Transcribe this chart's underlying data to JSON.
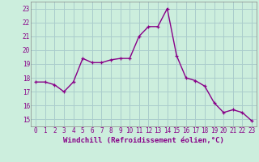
{
  "x": [
    0,
    1,
    2,
    3,
    4,
    5,
    6,
    7,
    8,
    9,
    10,
    11,
    12,
    13,
    14,
    15,
    16,
    17,
    18,
    19,
    20,
    21,
    22,
    23
  ],
  "y": [
    17.7,
    17.7,
    17.5,
    17.0,
    17.7,
    19.4,
    19.1,
    19.1,
    19.3,
    19.4,
    19.4,
    21.0,
    21.7,
    21.7,
    23.0,
    19.6,
    18.0,
    17.8,
    17.4,
    16.2,
    15.5,
    15.7,
    15.5,
    14.9
  ],
  "line_color": "#880088",
  "marker": "+",
  "marker_size": 3,
  "bg_color": "#cceedd",
  "grid_color": "#aacccc",
  "xlabel": "Windchill (Refroidissement éolien,°C)",
  "xlabel_fontsize": 6.5,
  "ylim": [
    14.5,
    23.5
  ],
  "yticks": [
    15,
    16,
    17,
    18,
    19,
    20,
    21,
    22,
    23
  ],
  "xticks": [
    0,
    1,
    2,
    3,
    4,
    5,
    6,
    7,
    8,
    9,
    10,
    11,
    12,
    13,
    14,
    15,
    16,
    17,
    18,
    19,
    20,
    21,
    22,
    23
  ],
  "tick_fontsize": 5.5,
  "line_width": 1.0
}
